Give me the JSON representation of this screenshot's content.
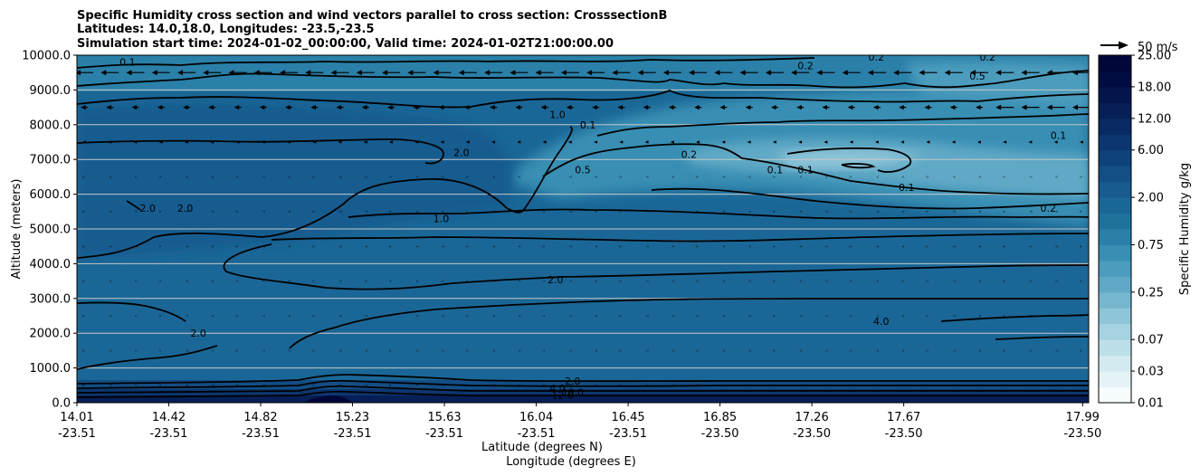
{
  "chart_data": {
    "type": "heatmap",
    "title_lines": [
      "Specific Humidity cross section and wind vectors parallel to cross section: CrosssectionB",
      "Latitudes: 14.0,18.0, Longitudes: -23.5,-23.5",
      "Simulation start time: 2024-01-02_00:00:00, Valid time: 2024-01-02T21:00:00.00"
    ],
    "ylabel": "Altitude (meters)",
    "xlabel_lat": "Latitude (degrees N)",
    "xlabel_lon": "Longitude (degrees E)",
    "ylim": [
      0,
      10000
    ],
    "yticks": [
      "0.0",
      "1000.0",
      "2000.0",
      "3000.0",
      "4000.0",
      "5000.0",
      "6000.0",
      "7000.0",
      "8000.0",
      "9000.0",
      "10000.0"
    ],
    "xticks": [
      {
        "lat": "14.01",
        "lon": "-23.51"
      },
      {
        "lat": "14.42",
        "lon": "-23.51"
      },
      {
        "lat": "14.82",
        "lon": "-23.51"
      },
      {
        "lat": "15.23",
        "lon": "-23.51"
      },
      {
        "lat": "15.63",
        "lon": "-23.51"
      },
      {
        "lat": "16.04",
        "lon": "-23.51"
      },
      {
        "lat": "16.45",
        "lon": "-23.51"
      },
      {
        "lat": "16.85",
        "lon": "-23.50"
      },
      {
        "lat": "17.26",
        "lon": "-23.50"
      },
      {
        "lat": "17.67",
        "lon": "-23.50"
      },
      {
        "lat": "17.99",
        "lon": "-23.50"
      }
    ],
    "grid": "horizontal",
    "colorbar": {
      "label": "Specific Humidity g/kg",
      "levels": [
        0.01,
        0.02,
        0.03,
        0.05,
        0.07,
        0.1,
        0.15,
        0.25,
        0.35,
        0.5,
        0.75,
        1.0,
        1.5,
        2.0,
        3.0,
        4.5,
        6.0,
        9.0,
        12.0,
        15.0,
        18.0,
        21.0,
        25.0
      ],
      "tick_labels": [
        "0.01",
        "0.03",
        "0.07",
        "0.25",
        "0.75",
        "2.00",
        "6.00",
        "12.00",
        "18.00",
        "25.00"
      ],
      "colors": [
        "#f7fcfd",
        "#e6f3f6",
        "#d2eaf0",
        "#bddfe9",
        "#a6d3e1",
        "#8ec5d8",
        "#76b7cf",
        "#60a9c6",
        "#4b9cbd",
        "#398eb3",
        "#2a80a8",
        "#1e739d",
        "#1a6797",
        "#175b8f",
        "#134e85",
        "#0f427b",
        "#0c3670",
        "#092a63",
        "#061f57",
        "#04154b",
        "#020c40",
        "#010738"
      ]
    },
    "quiver_key": "50 m/s",
    "contour_labels": [
      {
        "text": "0.1",
        "x": 0.05,
        "y": 9800
      },
      {
        "text": "0.2",
        "x": 0.72,
        "y": 9700
      },
      {
        "text": "0.2",
        "x": 0.79,
        "y": 9950
      },
      {
        "text": "0.2",
        "x": 0.9,
        "y": 9950
      },
      {
        "text": "0.5",
        "x": 0.89,
        "y": 9400
      },
      {
        "text": "1.0",
        "x": 0.475,
        "y": 8300
      },
      {
        "text": "0.1",
        "x": 0.505,
        "y": 8000
      },
      {
        "text": "2.0",
        "x": 0.38,
        "y": 7200
      },
      {
        "text": "0.2",
        "x": 0.605,
        "y": 7150
      },
      {
        "text": "0.5",
        "x": 0.5,
        "y": 6700
      },
      {
        "text": "0.1",
        "x": 0.69,
        "y": 6700
      },
      {
        "text": "0.1",
        "x": 0.72,
        "y": 6700
      },
      {
        "text": "0.1",
        "x": 0.82,
        "y": 6200
      },
      {
        "text": "0.1",
        "x": 0.97,
        "y": 7700
      },
      {
        "text": "0.2",
        "x": 0.96,
        "y": 5600
      },
      {
        "text": "1.0",
        "x": 0.36,
        "y": 5300
      },
      {
        "text": "2.0",
        "x": 0.07,
        "y": 5600
      },
      {
        "text": "2.0",
        "x": 0.107,
        "y": 5600
      },
      {
        "text": "2.0",
        "x": 0.473,
        "y": 3540
      },
      {
        "text": "2.0",
        "x": 0.12,
        "y": 2000
      },
      {
        "text": "4.0",
        "x": 0.795,
        "y": 2350
      },
      {
        "text": "2.0",
        "x": 0.49,
        "y": 620
      },
      {
        "text": "4.0",
        "x": 0.475,
        "y": 420
      },
      {
        "text": "10.0",
        "x": 0.49,
        "y": 300
      },
      {
        "text": "12.0",
        "x": 0.48,
        "y": 220
      }
    ]
  }
}
